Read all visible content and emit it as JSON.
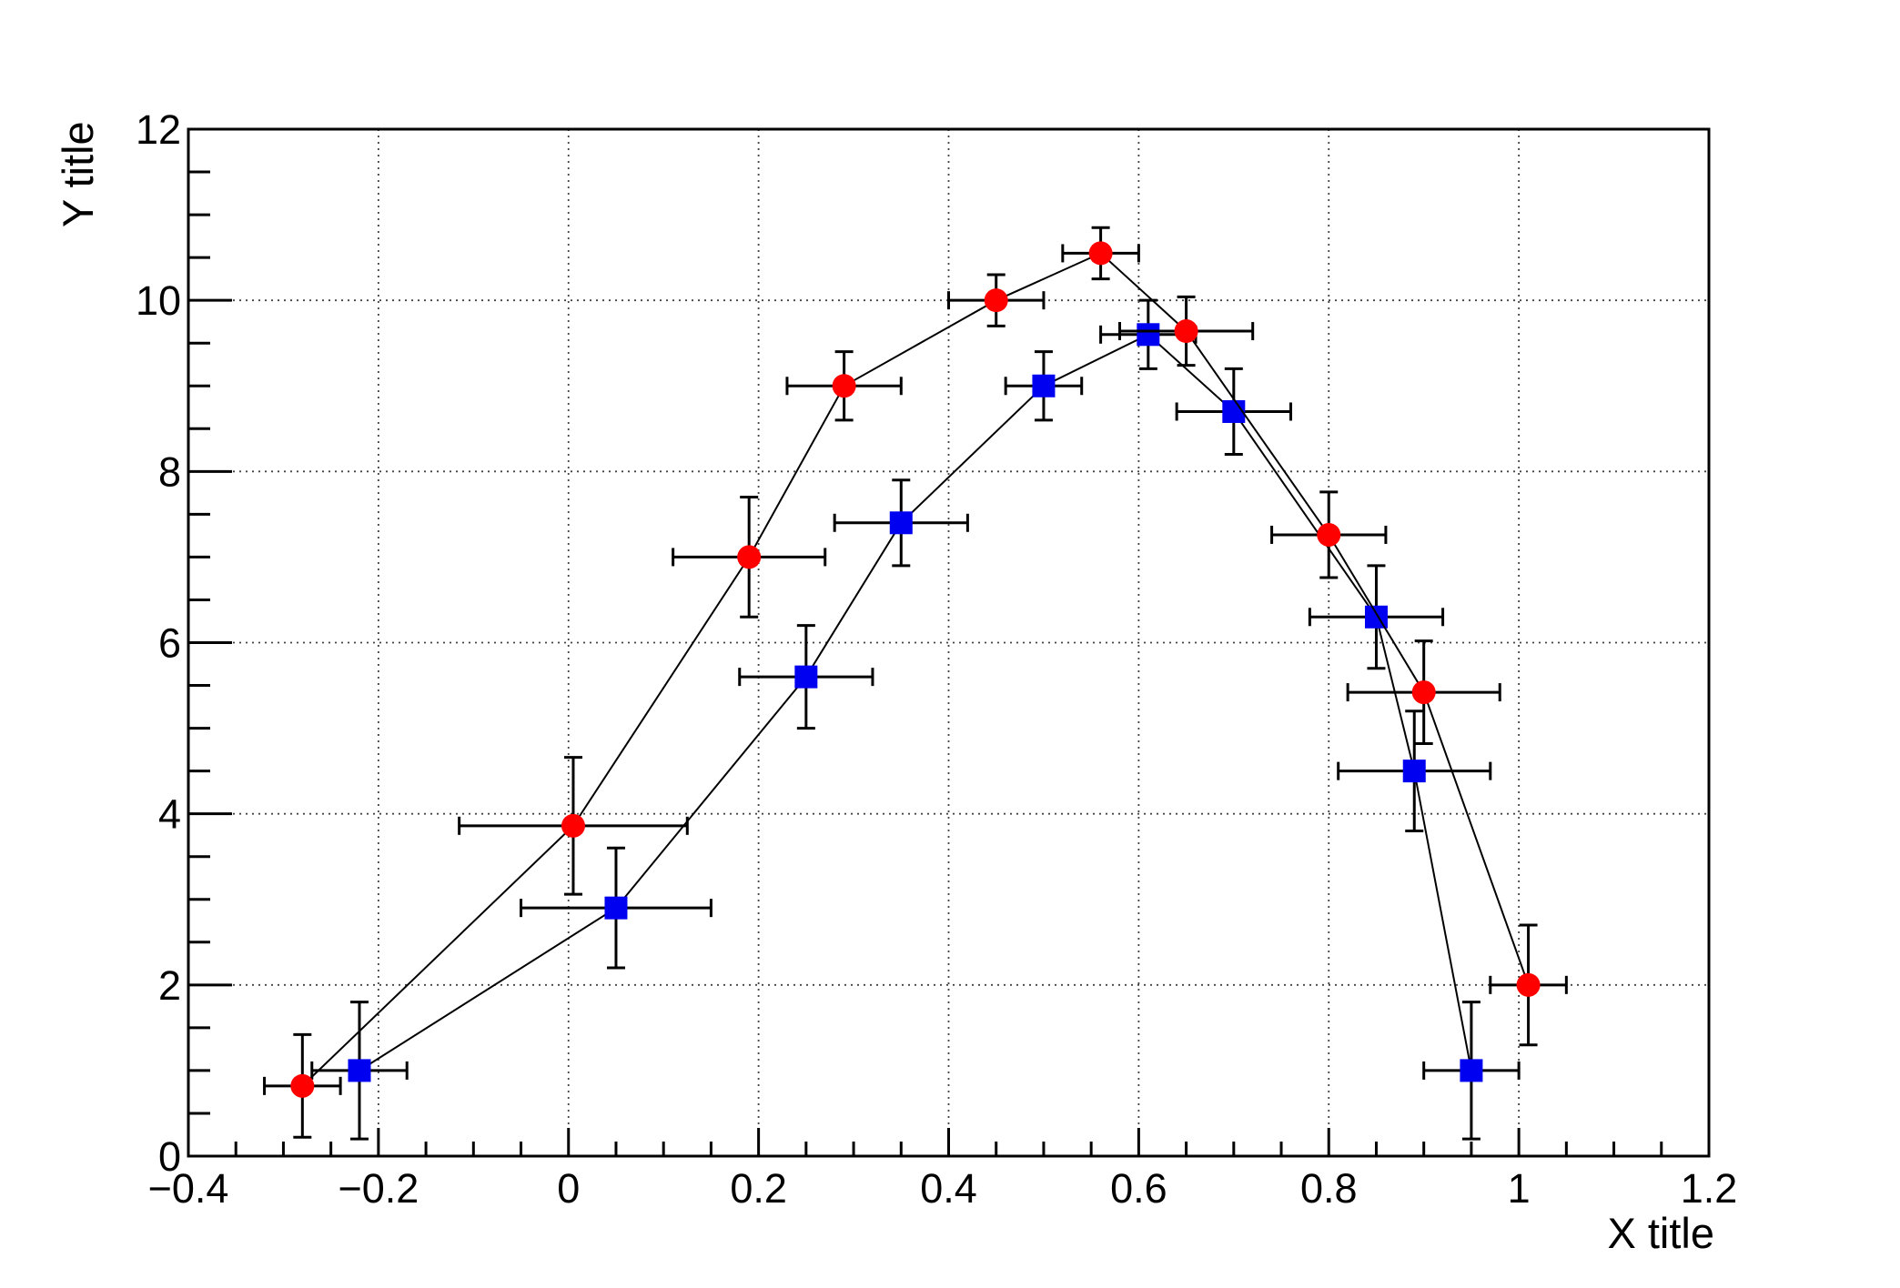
{
  "chart_data": {
    "type": "scatter",
    "title": "",
    "xlabel": "X title",
    "ylabel": "Y title",
    "xlim": [
      -0.4,
      1.2
    ],
    "ylim": [
      0,
      12
    ],
    "grid": true,
    "grid_style": "dotted",
    "grid_color": "#444444",
    "axis_color": "#000000",
    "background_color": "#ffffff",
    "legend": null,
    "x_major_ticks": [
      -0.4,
      -0.2,
      0,
      0.2,
      0.4,
      0.6,
      0.8,
      1,
      1.2
    ],
    "x_tick_labels": [
      "−0.4",
      "−0.2",
      "0",
      "0.2",
      "0.4",
      "0.6",
      "0.8",
      "1",
      "1.2"
    ],
    "x_minor_step": 0.05,
    "y_major_ticks": [
      0,
      2,
      4,
      6,
      8,
      10,
      12
    ],
    "y_tick_labels": [
      "0",
      "2",
      "4",
      "6",
      "8",
      "10",
      "12"
    ],
    "y_minor_step": 0.5,
    "series": [
      {
        "name": "blue-squares",
        "marker": "square",
        "marker_color": "#0000f0",
        "marker_size_px": 25,
        "line_color": "#000000",
        "x": [
          -0.22,
          0.05,
          0.25,
          0.35,
          0.5,
          0.61,
          0.7,
          0.85,
          0.89,
          0.95
        ],
        "y": [
          1,
          2.9,
          5.6,
          7.4,
          9,
          9.6,
          8.7,
          6.3,
          4.5,
          1
        ],
        "ex": [
          0.05,
          0.1,
          0.07,
          0.07,
          0.04,
          0.05,
          0.06,
          0.07,
          0.08,
          0.05
        ],
        "ey": [
          0.8,
          0.7,
          0.6,
          0.5,
          0.4,
          0.4,
          0.5,
          0.6,
          0.7,
          0.8
        ]
      },
      {
        "name": "red-circles",
        "marker": "circle",
        "marker_color": "#ff0000",
        "marker_size_px": 26,
        "line_color": "#000000",
        "x": [
          -0.28,
          0.005,
          0.19,
          0.29,
          0.45,
          0.56,
          0.65,
          0.8,
          0.9,
          1.01
        ],
        "y": [
          0.82,
          3.86,
          7,
          9,
          10,
          10.55,
          9.64,
          7.26,
          5.42,
          2
        ],
        "ex": [
          0.04,
          0.12,
          0.08,
          0.06,
          0.05,
          0.04,
          0.07,
          0.06,
          0.08,
          0.04
        ],
        "ey": [
          0.6,
          0.8,
          0.7,
          0.4,
          0.3,
          0.3,
          0.4,
          0.5,
          0.6,
          0.7
        ]
      }
    ]
  }
}
